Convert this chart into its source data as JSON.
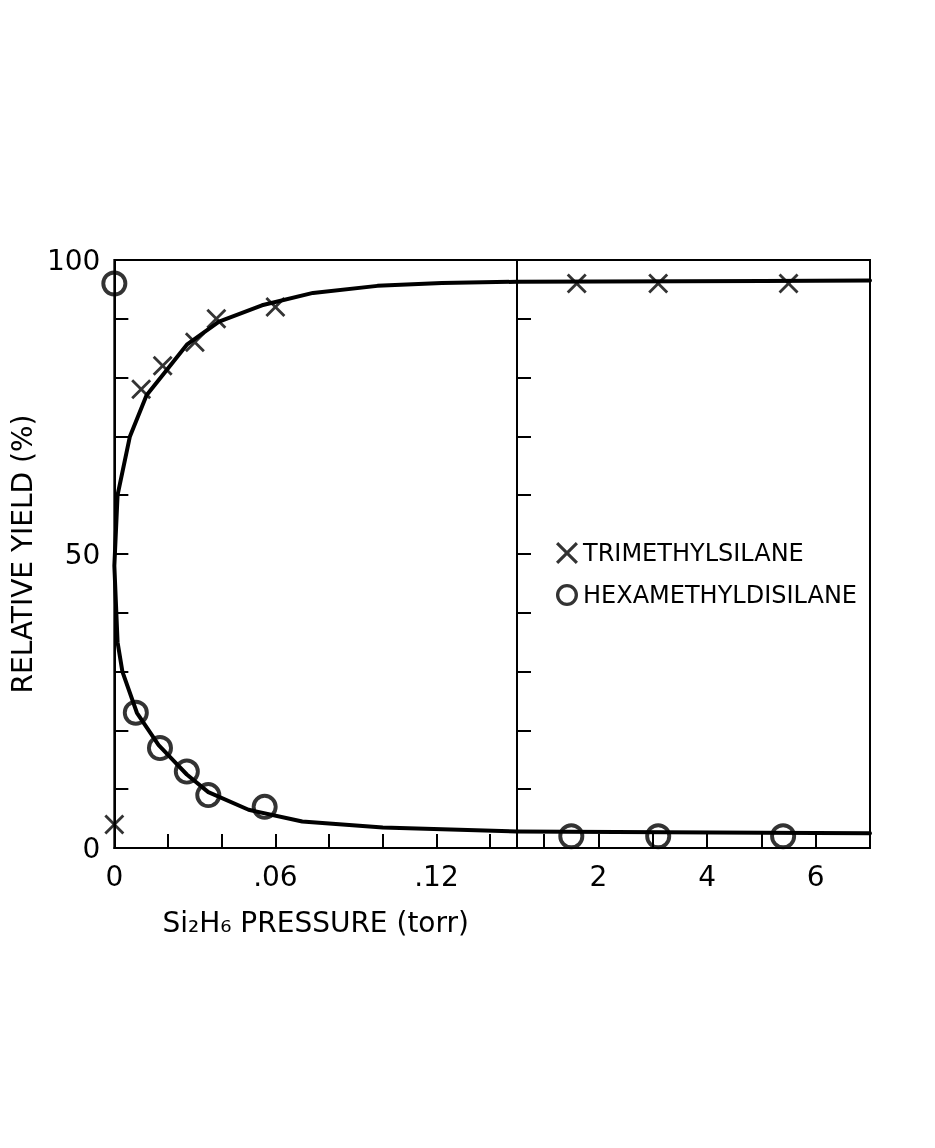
{
  "chart_data": [
    {
      "type": "scatter",
      "xlabel": "Si₂H₆ PRESSURE (torr)",
      "ylabel": "RELATIVE YIELD (%)",
      "xlim": [
        0,
        0.15
      ],
      "xticks": [
        0,
        {
          "value": 0.02,
          "label": null
        },
        {
          "value": 0.04,
          "label": null
        },
        {
          "value": 0.06,
          "label": ".06"
        },
        {
          "value": 0.08,
          "label": null
        },
        {
          "value": 0.1,
          "label": null
        },
        {
          "value": 0.12,
          "label": ".12"
        },
        {
          "value": 0.14,
          "label": null
        }
      ],
      "ylim": [
        0,
        100
      ],
      "yticks": [
        0,
        {
          "value": 10,
          "label": null
        },
        {
          "value": 20,
          "label": null
        },
        {
          "value": 30,
          "label": null
        },
        {
          "value": 40,
          "label": null
        },
        50,
        {
          "value": 60,
          "label": null
        },
        {
          "value": 70,
          "label": null
        },
        {
          "value": 80,
          "label": null
        },
        {
          "value": 90,
          "label": null
        },
        100
      ],
      "grid": false,
      "series": [
        {
          "color": "#000000",
          "marker": "cross",
          "x": [
            0,
            0.01,
            0.018,
            0.03,
            0.038,
            0.06
          ],
          "values": [
            4,
            78,
            82,
            86,
            90,
            92
          ]
        },
        {
          "color": "#000000",
          "marker": "circle",
          "x": [
            0,
            0.008,
            0.017,
            0.027,
            0.035,
            0.056
          ],
          "values": [
            96,
            23,
            17,
            13,
            9,
            7
          ]
        },
        {
          "type": "line",
          "color": "#000000",
          "marker": "none",
          "line_style": "solid",
          "x": [
            0.15,
            0.122,
            0.098,
            0.074,
            0.055,
            0.039,
            0.027,
            0.019,
            0.012,
            0.0058,
            0.0012,
            0,
            0.0012,
            0.003,
            0.0084,
            0.0165,
            0.027,
            0.035,
            0.05,
            0.07,
            0.1,
            0.15
          ],
          "values": [
            96.3,
            96.1,
            95.6,
            94.4,
            92.3,
            89.5,
            85.6,
            81,
            77,
            70,
            60,
            48,
            35,
            30,
            23,
            17.5,
            12.5,
            9.5,
            6.5,
            4.5,
            3.5,
            2.8
          ]
        }
      ]
    },
    {
      "type": "scatter",
      "xlim": [
        0.5,
        7
      ],
      "xticks": [
        {
          "value": 1,
          "label": null
        },
        2,
        {
          "value": 3,
          "label": null
        },
        4,
        {
          "value": 5,
          "label": null
        },
        6
      ],
      "ylim": [
        0,
        100
      ],
      "yticks": [
        0,
        {
          "value": 10,
          "label": null
        },
        {
          "value": 20,
          "label": null
        },
        {
          "value": 30,
          "label": null
        },
        {
          "value": 40,
          "label": null
        },
        50,
        {
          "value": 60,
          "label": null
        },
        {
          "value": 70,
          "label": null
        },
        {
          "value": 80,
          "label": null
        },
        {
          "value": 90,
          "label": null
        },
        100
      ],
      "tick_labels": "x",
      "legend": "right",
      "grid": false,
      "series": [
        {
          "name": "TRIMETHYLSILANE",
          "color": "#000000",
          "marker": "cross",
          "x": [
            5.5,
            3.1,
            1.6
          ],
          "values": [
            96,
            96,
            96
          ]
        },
        {
          "name": "HEXAMETHYLDISILANE",
          "color": "#000000",
          "marker": "circle",
          "x": [
            5.4,
            3.1,
            1.5
          ],
          "values": [
            2,
            2,
            2
          ]
        },
        {
          "type": "line",
          "color": "#000000",
          "marker": "none",
          "line_style": "solid",
          "x": [
            0.5,
            7
          ],
          "values": [
            96.3,
            96.5
          ]
        },
        {
          "type": "line",
          "color": "#000000",
          "marker": "none",
          "line_style": "solid",
          "x": [
            0.5,
            7
          ],
          "values": [
            2.8,
            2.5
          ]
        }
      ]
    }
  ]
}
